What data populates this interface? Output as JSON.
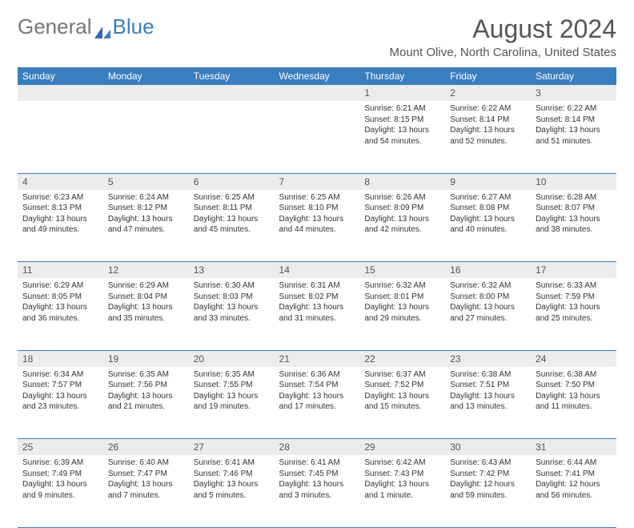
{
  "brand": {
    "part1": "General",
    "part2": "Blue"
  },
  "title": "August 2024",
  "location": "Mount Olive, North Carolina, United States",
  "colors": {
    "header_bg": "#3a7ebf",
    "daynum_bg": "#ececec",
    "border": "#3a7ebf"
  },
  "weekdays": [
    "Sunday",
    "Monday",
    "Tuesday",
    "Wednesday",
    "Thursday",
    "Friday",
    "Saturday"
  ],
  "weeks": [
    {
      "days": [
        {
          "num": "",
          "sunrise": "",
          "sunset": "",
          "daylight": ""
        },
        {
          "num": "",
          "sunrise": "",
          "sunset": "",
          "daylight": ""
        },
        {
          "num": "",
          "sunrise": "",
          "sunset": "",
          "daylight": ""
        },
        {
          "num": "",
          "sunrise": "",
          "sunset": "",
          "daylight": ""
        },
        {
          "num": "1",
          "sunrise": "Sunrise: 6:21 AM",
          "sunset": "Sunset: 8:15 PM",
          "daylight": "Daylight: 13 hours and 54 minutes."
        },
        {
          "num": "2",
          "sunrise": "Sunrise: 6:22 AM",
          "sunset": "Sunset: 8:14 PM",
          "daylight": "Daylight: 13 hours and 52 minutes."
        },
        {
          "num": "3",
          "sunrise": "Sunrise: 6:22 AM",
          "sunset": "Sunset: 8:14 PM",
          "daylight": "Daylight: 13 hours and 51 minutes."
        }
      ]
    },
    {
      "days": [
        {
          "num": "4",
          "sunrise": "Sunrise: 6:23 AM",
          "sunset": "Sunset: 8:13 PM",
          "daylight": "Daylight: 13 hours and 49 minutes."
        },
        {
          "num": "5",
          "sunrise": "Sunrise: 6:24 AM",
          "sunset": "Sunset: 8:12 PM",
          "daylight": "Daylight: 13 hours and 47 minutes."
        },
        {
          "num": "6",
          "sunrise": "Sunrise: 6:25 AM",
          "sunset": "Sunset: 8:11 PM",
          "daylight": "Daylight: 13 hours and 45 minutes."
        },
        {
          "num": "7",
          "sunrise": "Sunrise: 6:25 AM",
          "sunset": "Sunset: 8:10 PM",
          "daylight": "Daylight: 13 hours and 44 minutes."
        },
        {
          "num": "8",
          "sunrise": "Sunrise: 6:26 AM",
          "sunset": "Sunset: 8:09 PM",
          "daylight": "Daylight: 13 hours and 42 minutes."
        },
        {
          "num": "9",
          "sunrise": "Sunrise: 6:27 AM",
          "sunset": "Sunset: 8:08 PM",
          "daylight": "Daylight: 13 hours and 40 minutes."
        },
        {
          "num": "10",
          "sunrise": "Sunrise: 6:28 AM",
          "sunset": "Sunset: 8:07 PM",
          "daylight": "Daylight: 13 hours and 38 minutes."
        }
      ]
    },
    {
      "days": [
        {
          "num": "11",
          "sunrise": "Sunrise: 6:29 AM",
          "sunset": "Sunset: 8:05 PM",
          "daylight": "Daylight: 13 hours and 36 minutes."
        },
        {
          "num": "12",
          "sunrise": "Sunrise: 6:29 AM",
          "sunset": "Sunset: 8:04 PM",
          "daylight": "Daylight: 13 hours and 35 minutes."
        },
        {
          "num": "13",
          "sunrise": "Sunrise: 6:30 AM",
          "sunset": "Sunset: 8:03 PM",
          "daylight": "Daylight: 13 hours and 33 minutes."
        },
        {
          "num": "14",
          "sunrise": "Sunrise: 6:31 AM",
          "sunset": "Sunset: 8:02 PM",
          "daylight": "Daylight: 13 hours and 31 minutes."
        },
        {
          "num": "15",
          "sunrise": "Sunrise: 6:32 AM",
          "sunset": "Sunset: 8:01 PM",
          "daylight": "Daylight: 13 hours and 29 minutes."
        },
        {
          "num": "16",
          "sunrise": "Sunrise: 6:32 AM",
          "sunset": "Sunset: 8:00 PM",
          "daylight": "Daylight: 13 hours and 27 minutes."
        },
        {
          "num": "17",
          "sunrise": "Sunrise: 6:33 AM",
          "sunset": "Sunset: 7:59 PM",
          "daylight": "Daylight: 13 hours and 25 minutes."
        }
      ]
    },
    {
      "days": [
        {
          "num": "18",
          "sunrise": "Sunrise: 6:34 AM",
          "sunset": "Sunset: 7:57 PM",
          "daylight": "Daylight: 13 hours and 23 minutes."
        },
        {
          "num": "19",
          "sunrise": "Sunrise: 6:35 AM",
          "sunset": "Sunset: 7:56 PM",
          "daylight": "Daylight: 13 hours and 21 minutes."
        },
        {
          "num": "20",
          "sunrise": "Sunrise: 6:35 AM",
          "sunset": "Sunset: 7:55 PM",
          "daylight": "Daylight: 13 hours and 19 minutes."
        },
        {
          "num": "21",
          "sunrise": "Sunrise: 6:36 AM",
          "sunset": "Sunset: 7:54 PM",
          "daylight": "Daylight: 13 hours and 17 minutes."
        },
        {
          "num": "22",
          "sunrise": "Sunrise: 6:37 AM",
          "sunset": "Sunset: 7:52 PM",
          "daylight": "Daylight: 13 hours and 15 minutes."
        },
        {
          "num": "23",
          "sunrise": "Sunrise: 6:38 AM",
          "sunset": "Sunset: 7:51 PM",
          "daylight": "Daylight: 13 hours and 13 minutes."
        },
        {
          "num": "24",
          "sunrise": "Sunrise: 6:38 AM",
          "sunset": "Sunset: 7:50 PM",
          "daylight": "Daylight: 13 hours and 11 minutes."
        }
      ]
    },
    {
      "days": [
        {
          "num": "25",
          "sunrise": "Sunrise: 6:39 AM",
          "sunset": "Sunset: 7:49 PM",
          "daylight": "Daylight: 13 hours and 9 minutes."
        },
        {
          "num": "26",
          "sunrise": "Sunrise: 6:40 AM",
          "sunset": "Sunset: 7:47 PM",
          "daylight": "Daylight: 13 hours and 7 minutes."
        },
        {
          "num": "27",
          "sunrise": "Sunrise: 6:41 AM",
          "sunset": "Sunset: 7:46 PM",
          "daylight": "Daylight: 13 hours and 5 minutes."
        },
        {
          "num": "28",
          "sunrise": "Sunrise: 6:41 AM",
          "sunset": "Sunset: 7:45 PM",
          "daylight": "Daylight: 13 hours and 3 minutes."
        },
        {
          "num": "29",
          "sunrise": "Sunrise: 6:42 AM",
          "sunset": "Sunset: 7:43 PM",
          "daylight": "Daylight: 13 hours and 1 minute."
        },
        {
          "num": "30",
          "sunrise": "Sunrise: 6:43 AM",
          "sunset": "Sunset: 7:42 PM",
          "daylight": "Daylight: 12 hours and 59 minutes."
        },
        {
          "num": "31",
          "sunrise": "Sunrise: 6:44 AM",
          "sunset": "Sunset: 7:41 PM",
          "daylight": "Daylight: 12 hours and 56 minutes."
        }
      ]
    }
  ]
}
